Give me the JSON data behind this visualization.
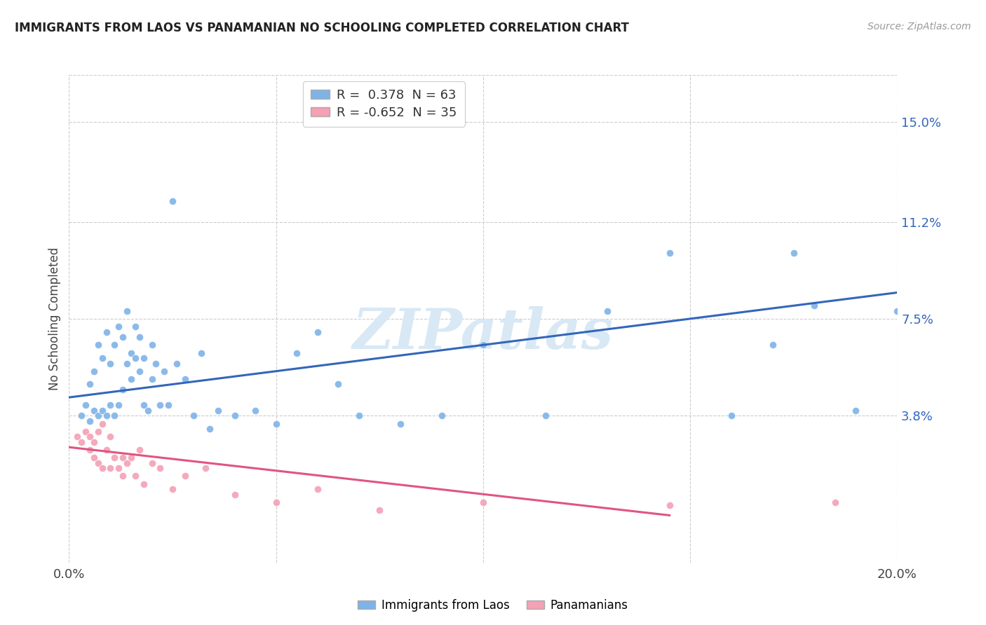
{
  "title": "IMMIGRANTS FROM LAOS VS PANAMANIAN NO SCHOOLING COMPLETED CORRELATION CHART",
  "source": "Source: ZipAtlas.com",
  "ylabel": "No Schooling Completed",
  "ytick_labels": [
    "15.0%",
    "11.2%",
    "7.5%",
    "3.8%"
  ],
  "ytick_values": [
    0.15,
    0.112,
    0.075,
    0.038
  ],
  "xlim": [
    0.0,
    0.2
  ],
  "ylim": [
    -0.018,
    0.168
  ],
  "legend_blue_r": "0.378",
  "legend_blue_n": "63",
  "legend_pink_r": "-0.652",
  "legend_pink_n": "35",
  "blue_color": "#7EB3E8",
  "pink_color": "#F4A0B5",
  "blue_line_color": "#3366BB",
  "pink_line_color": "#E05580",
  "watermark_color": "#D8E8F5",
  "legend_label_blue": "Immigrants from Laos",
  "legend_label_pink": "Panamanians",
  "blue_scatter_x": [
    0.003,
    0.004,
    0.005,
    0.005,
    0.006,
    0.006,
    0.007,
    0.007,
    0.008,
    0.008,
    0.009,
    0.009,
    0.01,
    0.01,
    0.011,
    0.011,
    0.012,
    0.012,
    0.013,
    0.013,
    0.014,
    0.014,
    0.015,
    0.015,
    0.016,
    0.016,
    0.017,
    0.017,
    0.018,
    0.018,
    0.019,
    0.02,
    0.02,
    0.021,
    0.022,
    0.023,
    0.024,
    0.025,
    0.026,
    0.028,
    0.03,
    0.032,
    0.034,
    0.036,
    0.04,
    0.045,
    0.05,
    0.055,
    0.06,
    0.065,
    0.07,
    0.08,
    0.09,
    0.1,
    0.115,
    0.13,
    0.145,
    0.16,
    0.17,
    0.175,
    0.18,
    0.19,
    0.2
  ],
  "blue_scatter_y": [
    0.038,
    0.042,
    0.036,
    0.05,
    0.04,
    0.055,
    0.038,
    0.065,
    0.04,
    0.06,
    0.038,
    0.07,
    0.042,
    0.058,
    0.038,
    0.065,
    0.042,
    0.072,
    0.048,
    0.068,
    0.058,
    0.078,
    0.052,
    0.062,
    0.06,
    0.072,
    0.055,
    0.068,
    0.042,
    0.06,
    0.04,
    0.052,
    0.065,
    0.058,
    0.042,
    0.055,
    0.042,
    0.12,
    0.058,
    0.052,
    0.038,
    0.062,
    0.033,
    0.04,
    0.038,
    0.04,
    0.035,
    0.062,
    0.07,
    0.05,
    0.038,
    0.035,
    0.038,
    0.065,
    0.038,
    0.078,
    0.1,
    0.038,
    0.065,
    0.1,
    0.08,
    0.04,
    0.078
  ],
  "pink_scatter_x": [
    0.002,
    0.003,
    0.004,
    0.005,
    0.005,
    0.006,
    0.006,
    0.007,
    0.007,
    0.008,
    0.008,
    0.009,
    0.01,
    0.01,
    0.011,
    0.012,
    0.013,
    0.013,
    0.014,
    0.015,
    0.016,
    0.017,
    0.018,
    0.02,
    0.022,
    0.025,
    0.028,
    0.033,
    0.04,
    0.05,
    0.06,
    0.075,
    0.1,
    0.145,
    0.185
  ],
  "pink_scatter_y": [
    0.03,
    0.028,
    0.032,
    0.03,
    0.025,
    0.028,
    0.022,
    0.032,
    0.02,
    0.035,
    0.018,
    0.025,
    0.03,
    0.018,
    0.022,
    0.018,
    0.022,
    0.015,
    0.02,
    0.022,
    0.015,
    0.025,
    0.012,
    0.02,
    0.018,
    0.01,
    0.015,
    0.018,
    0.008,
    0.005,
    0.01,
    0.002,
    0.005,
    0.004,
    0.005
  ],
  "blue_line_x": [
    0.0,
    0.2
  ],
  "blue_line_y": [
    0.045,
    0.085
  ],
  "pink_line_x": [
    0.0,
    0.145
  ],
  "pink_line_y": [
    0.026,
    0.0
  ],
  "marker_size": 55
}
